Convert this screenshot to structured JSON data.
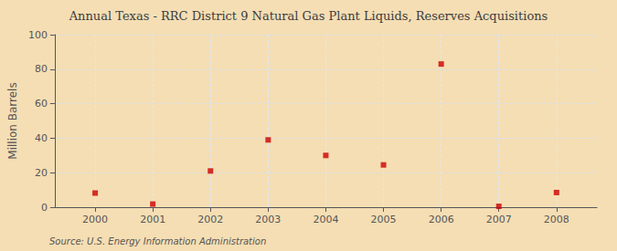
{
  "chart_data": {
    "type": "scatter",
    "title": "Annual Texas - RRC District 9 Natural Gas Plant Liquids, Reserves Acquisitions",
    "ylabel": "Million Barrels",
    "annotation": "Source: U.S. Energy Information Administration",
    "x": [
      2000,
      2001,
      2002,
      2003,
      2004,
      2005,
      2006,
      2007,
      2008
    ],
    "values": [
      8.2,
      1.8,
      21.0,
      39.0,
      30.0,
      24.5,
      83.0,
      0.5,
      8.5
    ],
    "color": "#cc0000",
    "marker": "square",
    "xlim": [
      1999.3,
      2008.7
    ],
    "xticks": [
      2000,
      2001,
      2002,
      2003,
      2004,
      2005,
      2006,
      2007,
      2008
    ],
    "ylim": [
      0,
      100
    ],
    "yticks": [
      0,
      20,
      40,
      60,
      80,
      100
    ],
    "grid": true
  }
}
